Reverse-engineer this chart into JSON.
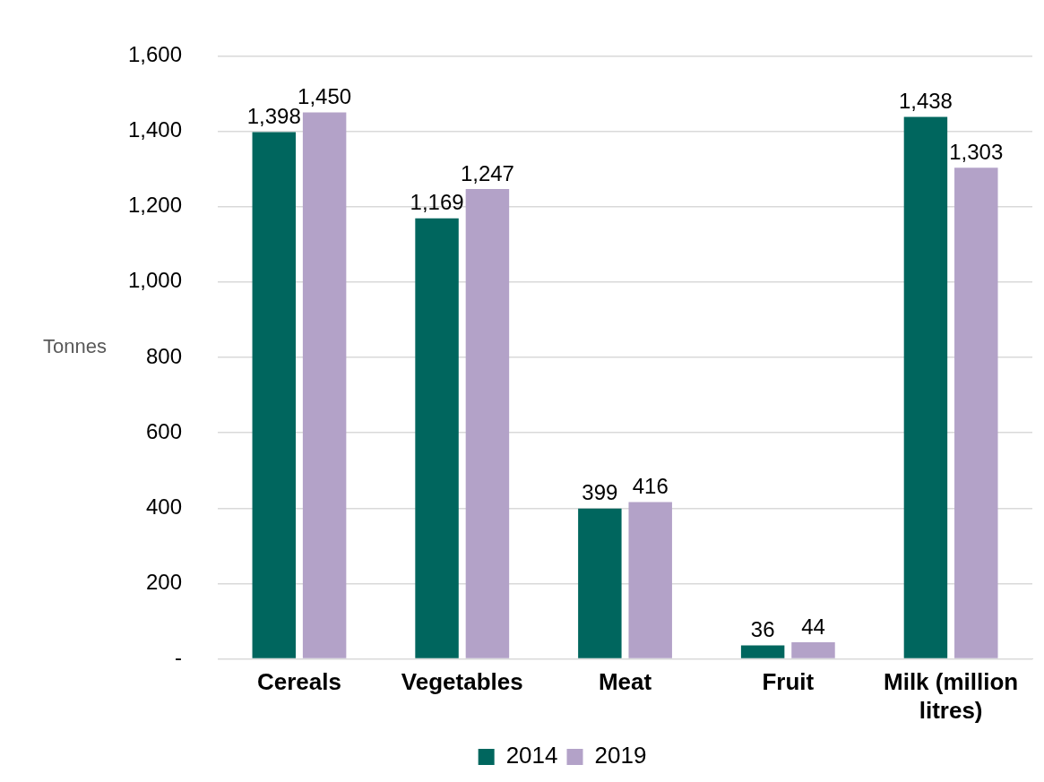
{
  "chart_data": {
    "type": "bar",
    "ylabel": "Tonnes",
    "categories": [
      "Cereals",
      "Vegetables",
      "Meat",
      "Fruit",
      "Milk (million litres)"
    ],
    "series": [
      {
        "name": "2014",
        "color": "#00665e",
        "values": [
          1398,
          1169,
          399,
          36,
          1438
        ],
        "value_labels": [
          "1,398",
          "1,169",
          "399",
          "36",
          "1,438"
        ]
      },
      {
        "name": "2019",
        "color": "#b3a2c8",
        "values": [
          1450,
          1247,
          416,
          44,
          1303
        ],
        "value_labels": [
          "1,450",
          "1,247",
          "416",
          "44",
          "1,303"
        ]
      }
    ],
    "ylim": [
      0,
      1600
    ],
    "yticks": [
      {
        "value": 0,
        "label": "-"
      },
      200,
      400,
      600,
      800,
      {
        "value": 1000,
        "label": "1,000"
      },
      {
        "value": 1200,
        "label": "1,200"
      },
      {
        "value": 1400,
        "label": "1,400"
      },
      {
        "value": 1600,
        "label": "1,600"
      }
    ],
    "grid": "y",
    "legend": "bottom"
  }
}
